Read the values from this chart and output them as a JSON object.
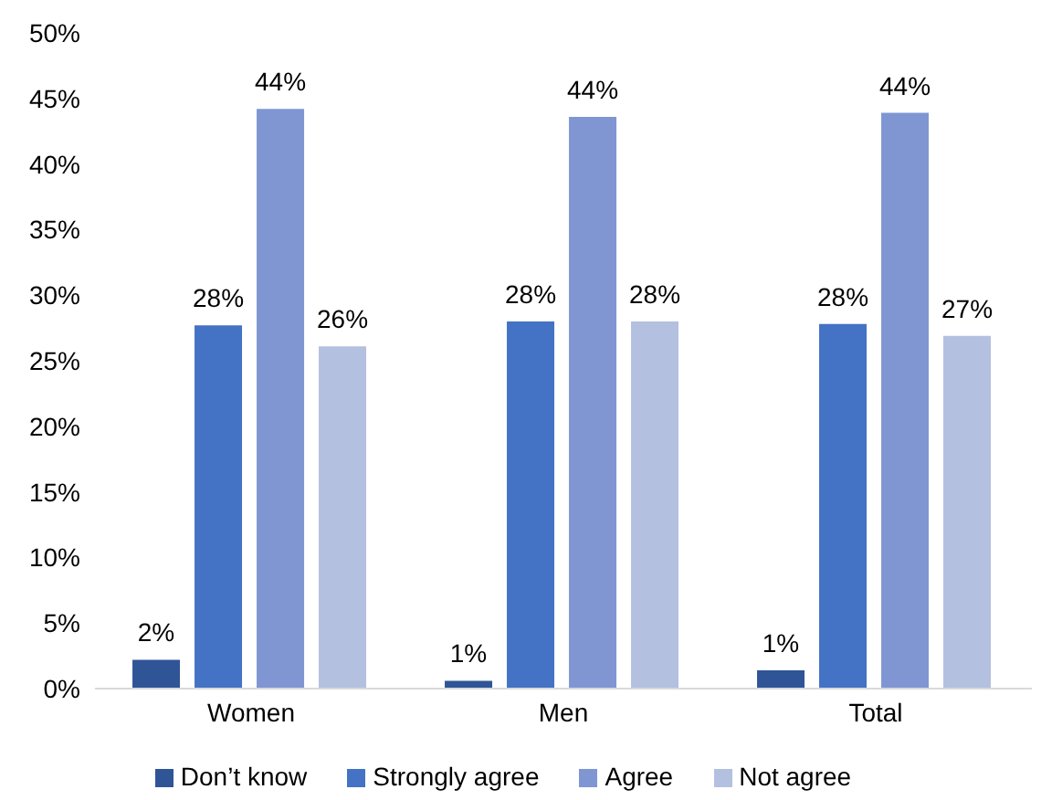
{
  "chart_data": {
    "type": "bar",
    "categories": [
      "Women",
      "Men",
      "Total"
    ],
    "series": [
      {
        "name": "Don’t know",
        "color": "#2f5597",
        "values": [
          2.2,
          0.6,
          1.4
        ],
        "value_labels": [
          "2%",
          "1%",
          "1%"
        ]
      },
      {
        "name": "Strongly agree",
        "color": "#4472c4",
        "values": [
          27.7,
          28.0,
          27.8
        ],
        "value_labels": [
          "28%",
          "28%",
          "28%"
        ]
      },
      {
        "name": "Agree",
        "color": "#7f96d3",
        "values": [
          44.2,
          43.6,
          43.9
        ],
        "value_labels": [
          "44%",
          "44%",
          "44%"
        ]
      },
      {
        "name": "Not agree",
        "color": "#b4c0e0",
        "values": [
          26.1,
          28.0,
          26.9
        ],
        "value_labels": [
          "26%",
          "28%",
          "27%"
        ]
      }
    ],
    "ylim": [
      0,
      50
    ],
    "yticks": [
      {
        "value": 0,
        "label": "0%"
      },
      {
        "value": 5,
        "label": "5%"
      },
      {
        "value": 10,
        "label": "10%"
      },
      {
        "value": 15,
        "label": "15%"
      },
      {
        "value": 20,
        "label": "20%"
      },
      {
        "value": 25,
        "label": "25%"
      },
      {
        "value": 30,
        "label": "30%"
      },
      {
        "value": 35,
        "label": "35%"
      },
      {
        "value": 40,
        "label": "40%"
      },
      {
        "value": 45,
        "label": "45%"
      },
      {
        "value": 50,
        "label": "50%"
      }
    ],
    "grid": false,
    "legend": "bottom"
  }
}
